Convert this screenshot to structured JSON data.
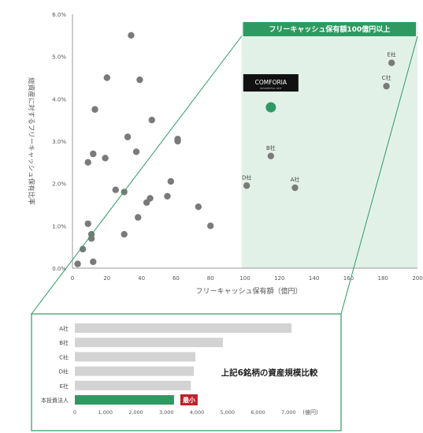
{
  "chart_data": [
    {
      "type": "scatter",
      "xlabel": "フリーキャッシュ保有額（億円）",
      "ylabel": "総資産に対するフリーキャッシュ保有比率",
      "xlim": [
        0,
        200
      ],
      "ylim": [
        0,
        6
      ],
      "x_ticks": [
        0,
        20,
        40,
        60,
        80,
        100,
        120,
        140,
        160,
        180,
        200
      ],
      "y_ticks": [
        "0.0%",
        "1.0%",
        "2.0%",
        "3.0%",
        "4.0%",
        "5.0%",
        "6.0%"
      ],
      "grid": false,
      "highlight_region": {
        "label": "フリーキャッシュ保有額100億円以上",
        "x_from": 98,
        "x_to": 200,
        "color": "#e2f1e8"
      },
      "series": [
        {
          "points": [
            {
              "x": 3,
              "y": 0.1
            },
            {
              "x": 6,
              "y": 0.45
            },
            {
              "x": 9,
              "y": 1.05
            },
            {
              "x": 9,
              "y": 2.5
            },
            {
              "x": 11,
              "y": 0.7
            },
            {
              "x": 11,
              "y": 0.8
            },
            {
              "x": 12,
              "y": 0.15
            },
            {
              "x": 12,
              "y": 2.7
            },
            {
              "x": 13,
              "y": 3.75
            },
            {
              "x": 19,
              "y": 2.6
            },
            {
              "x": 20,
              "y": 4.5
            },
            {
              "x": 25,
              "y": 1.85
            },
            {
              "x": 30,
              "y": 0.8
            },
            {
              "x": 30,
              "y": 1.8
            },
            {
              "x": 32,
              "y": 3.1
            },
            {
              "x": 34,
              "y": 5.5
            },
            {
              "x": 37,
              "y": 2.75
            },
            {
              "x": 38,
              "y": 1.2
            },
            {
              "x": 39,
              "y": 4.45
            },
            {
              "x": 43,
              "y": 1.55
            },
            {
              "x": 45,
              "y": 1.65
            },
            {
              "x": 46,
              "y": 3.5
            },
            {
              "x": 55,
              "y": 1.7
            },
            {
              "x": 57,
              "y": 2.05
            },
            {
              "x": 61,
              "y": 3.0
            },
            {
              "x": 61,
              "y": 3.05
            },
            {
              "x": 73,
              "y": 1.45
            },
            {
              "x": 80,
              "y": 1.0
            }
          ]
        },
        {
          "points": [
            {
              "x": 101,
              "y": 1.95,
              "label": "D社"
            },
            {
              "x": 115,
              "y": 2.65,
              "label": "B社"
            },
            {
              "x": 129,
              "y": 1.9,
              "label": "A社"
            },
            {
              "x": 182,
              "y": 4.3,
              "label": "C社"
            },
            {
              "x": 185,
              "y": 4.85,
              "label": "E社"
            }
          ]
        },
        {
          "color": "#2e9a62",
          "points": [
            {
              "x": 115,
              "y": 3.8
            }
          ]
        }
      ],
      "logo_text": "COMFORIA",
      "logo_subtext": "RESIDENTIAL REIT"
    },
    {
      "type": "bar",
      "orientation": "horizontal",
      "title": "上記6銘柄の資産規模比較",
      "categories": [
        "A社",
        "B社",
        "C社",
        "D社",
        "E社",
        "本投資法人"
      ],
      "values": [
        7100,
        4850,
        3950,
        3900,
        3800,
        3250
      ],
      "xlim": [
        0,
        8000
      ],
      "x_ticks": [
        "0",
        "1,000",
        "2,000",
        "3,000",
        "4,000",
        "5,000",
        "6,000",
        "7,000"
      ],
      "x_unit": "(億円)",
      "bar_color": "#d3d3d3",
      "highlight_bar_color": "#2e9a62",
      "badge": {
        "label": "最小",
        "color": "#c0202a"
      }
    }
  ]
}
